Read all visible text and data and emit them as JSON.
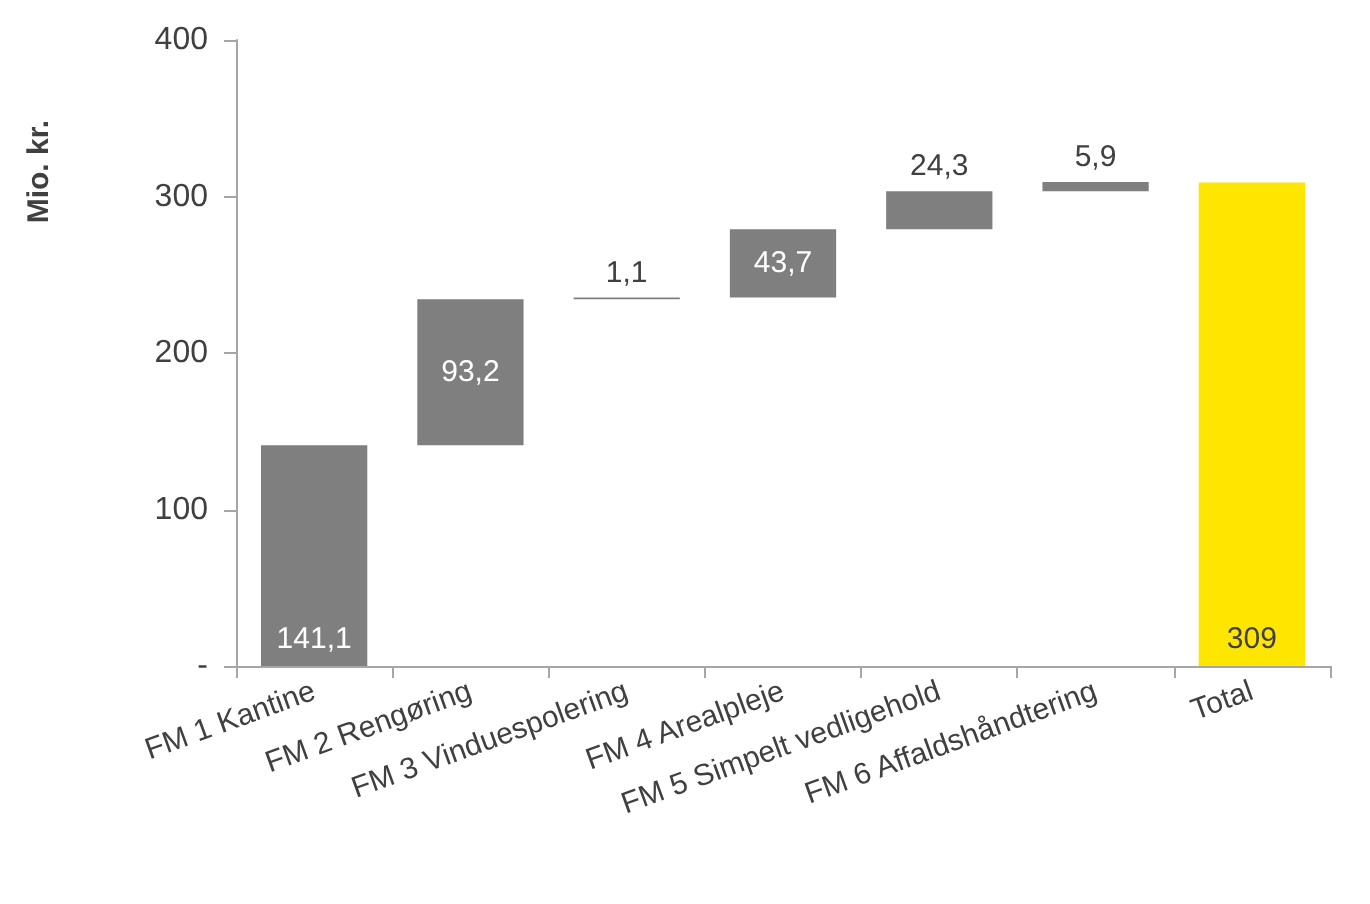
{
  "chart_data": {
    "type": "bar",
    "ylabel": "Mio. kr.",
    "categories": [
      "FM 1 Kantine",
      "FM 2 Rengøring",
      "FM 3 Vinduespolering",
      "FM 4 Arealpleje",
      "FM 5 Simpelt vedligehold",
      "FM 6 Affaldshåndtering",
      "Total"
    ],
    "values": [
      141.1,
      93.2,
      1.1,
      43.7,
      24.3,
      5.9,
      309
    ],
    "base": [
      0,
      141.1,
      234.3,
      235.4,
      279.1,
      303.4,
      0
    ],
    "colors": [
      "#7f7f7f",
      "#7f7f7f",
      "#7f7f7f",
      "#7f7f7f",
      "#7f7f7f",
      "#7f7f7f",
      "#ffe600"
    ],
    "value_labels": [
      "141,1",
      "93,2",
      "1,1",
      "43,7",
      "24,3",
      "5,9",
      "309"
    ],
    "ylim": [
      0,
      400
    ],
    "yticks": [
      {
        "value": 0,
        "label": "-"
      },
      100,
      200,
      300,
      400
    ],
    "grid": false
  }
}
